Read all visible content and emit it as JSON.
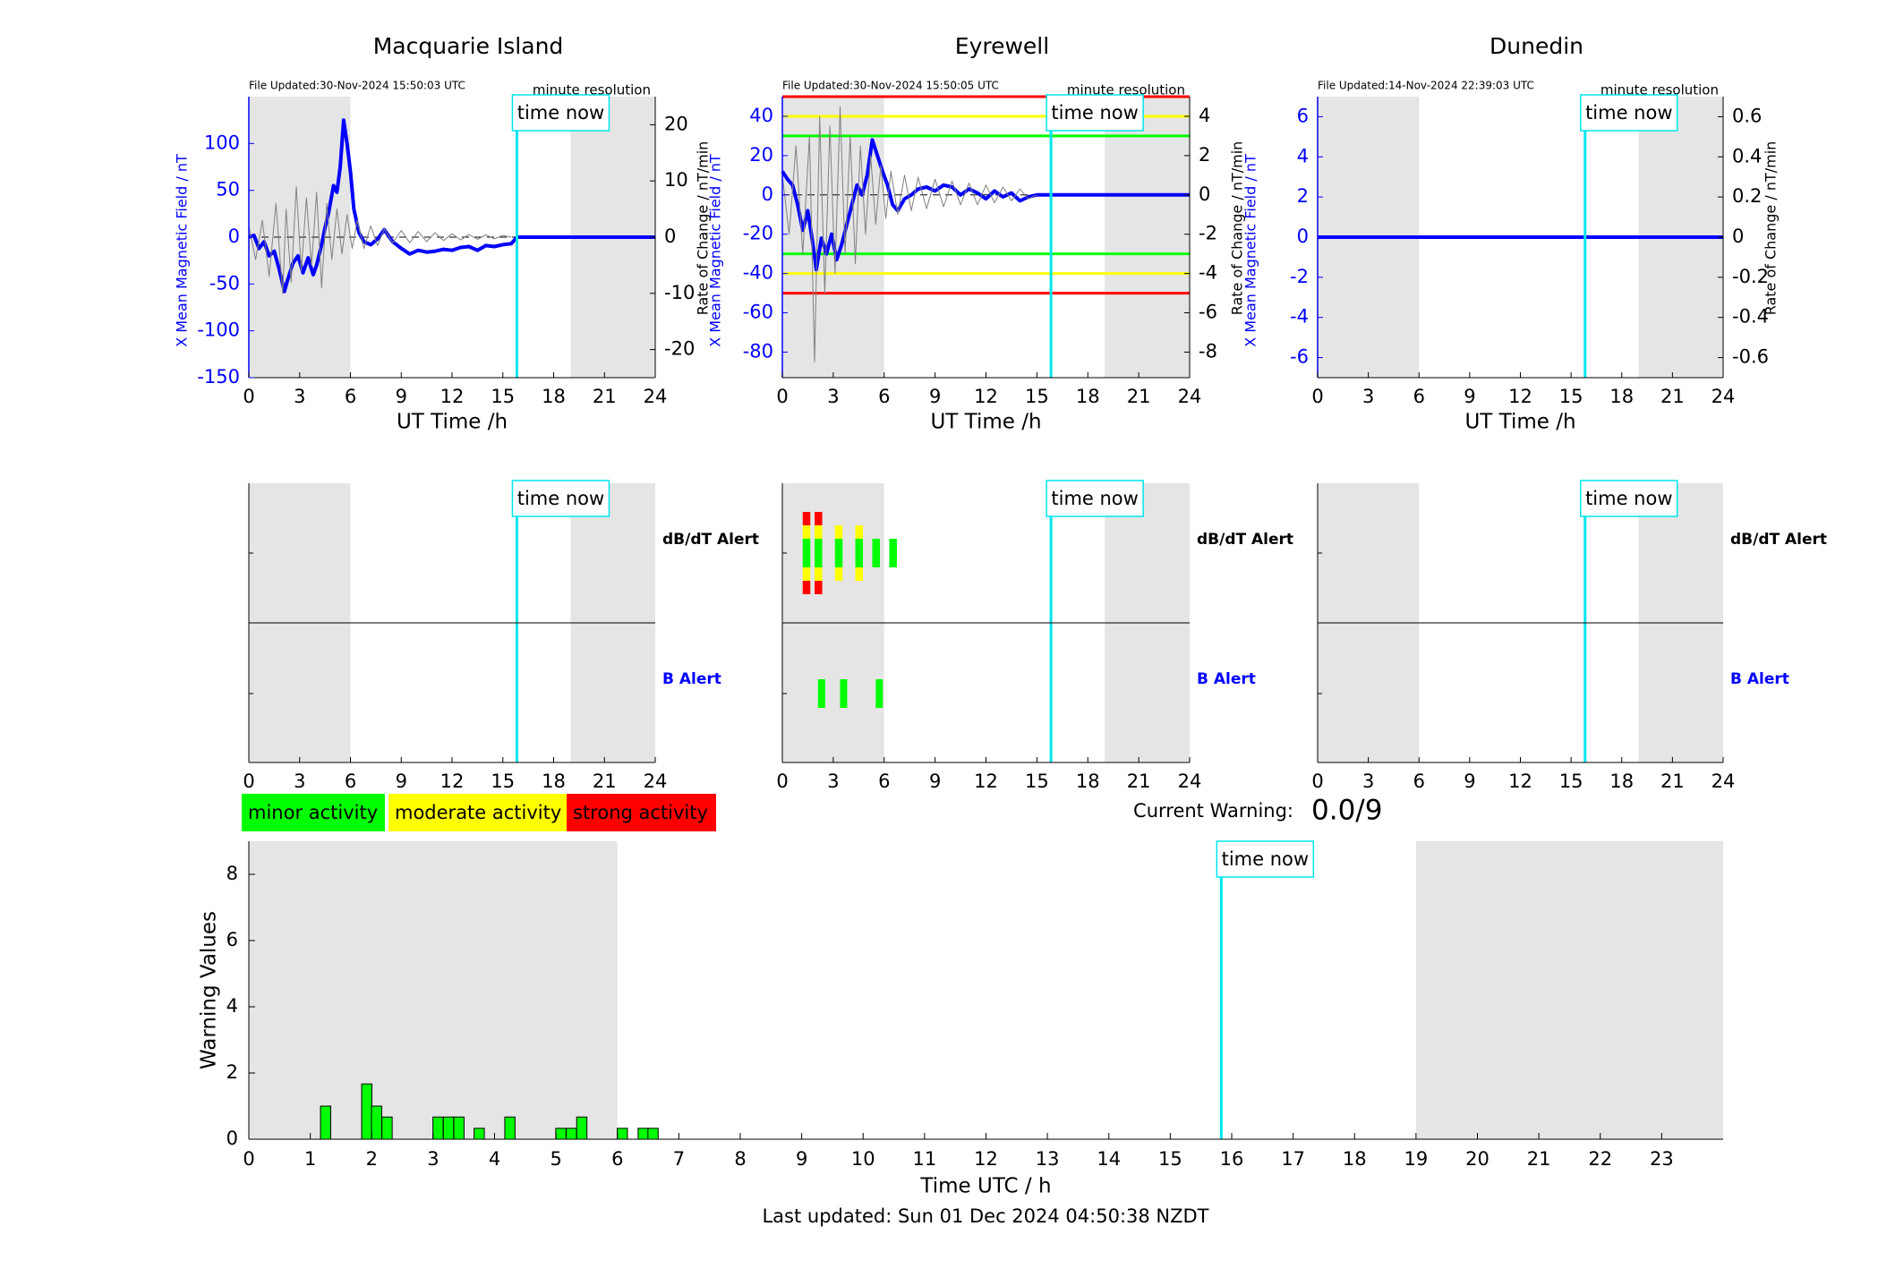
{
  "figure": {
    "time_now_label": "time now",
    "dbdt_alert_label": "dB/dT Alert",
    "b_alert_label": "B Alert",
    "minute_resolution_label": "minute resolution",
    "colors": {
      "field": "#0000ff",
      "rate": "#808080",
      "time_now": "#00e5ee",
      "night_shade": "#e5e5e5",
      "minor": "#00ff00",
      "moderate": "#ffff00",
      "strong": "#ff0000"
    },
    "legend": [
      {
        "label": "minor activity",
        "color": "#00ff00"
      },
      {
        "label": "moderate activity",
        "color": "#ffff00"
      },
      {
        "label": "strong activity",
        "color": "#ff0000"
      }
    ],
    "current_warning_label": "Current Warning:",
    "current_warning_value": "0.0/9",
    "last_updated": "Last updated: Sun 01 Dec 2024 04:50:38 NZDT"
  },
  "chart_data": [
    {
      "type": "line",
      "title": "Macquarie Island",
      "file_updated": "File Updated:30-Nov-2024 15:50:03 UTC",
      "xlabel": "UT Time /h",
      "ylabel": "X Mean Magnetic Field / nT",
      "y2label": "Rate of Change / nT/min",
      "xlim": [
        0,
        24
      ],
      "xticks": [
        0,
        3,
        6,
        9,
        12,
        15,
        18,
        21,
        24
      ],
      "ylim": [
        -150,
        150
      ],
      "yticks": [
        -150,
        -100,
        -50,
        0,
        50,
        100
      ],
      "y2lim": [
        -25,
        25
      ],
      "y2ticks": [
        -20,
        -10,
        0,
        10,
        20
      ],
      "night_shading_h": [
        [
          0,
          6
        ],
        [
          19,
          24
        ]
      ],
      "time_now_h": 15.83,
      "thresholds": [],
      "series": [
        {
          "name": "X Mean Magnetic Field",
          "axis": "left",
          "x": [
            0,
            0.3,
            0.6,
            0.9,
            1.2,
            1.5,
            1.8,
            2.1,
            2.3,
            2.6,
            2.9,
            3.2,
            3.5,
            3.8,
            4.0,
            4.3,
            4.5,
            4.7,
            5.0,
            5.2,
            5.4,
            5.6,
            5.8,
            6.0,
            6.2,
            6.5,
            6.8,
            7.2,
            7.6,
            8.0,
            8.5,
            9.0,
            9.5,
            10.0,
            10.5,
            11.0,
            11.5,
            12.0,
            12.5,
            13.0,
            13.5,
            14.0,
            14.5,
            15.0,
            15.5,
            15.83,
            24
          ],
          "y": [
            0,
            2,
            -12,
            -5,
            -20,
            -15,
            -35,
            -58,
            -45,
            -28,
            -20,
            -38,
            -22,
            -40,
            -30,
            -8,
            10,
            25,
            55,
            48,
            75,
            125,
            100,
            70,
            30,
            5,
            -5,
            -8,
            -2,
            8,
            -5,
            -12,
            -18,
            -14,
            -16,
            -15,
            -13,
            -14,
            -11,
            -10,
            -14,
            -9,
            -10,
            -8,
            -7,
            0,
            0
          ]
        },
        {
          "name": "Rate of Change",
          "axis": "right",
          "x": [
            0,
            0.4,
            0.8,
            1.2,
            1.6,
            2.0,
            2.2,
            2.5,
            2.8,
            3.1,
            3.4,
            3.7,
            4.0,
            4.3,
            4.6,
            4.9,
            5.2,
            5.5,
            5.8,
            6.1,
            6.4,
            6.8,
            7.2,
            7.6,
            8.0,
            8.5,
            9.0,
            9.5,
            10.0,
            10.5,
            11.0,
            11.5,
            12.0,
            12.5,
            13.0,
            13.5,
            14.0,
            14.5,
            15.0,
            15.5
          ],
          "y": [
            2,
            -4,
            3,
            -7,
            6,
            -10,
            5,
            -8,
            9,
            -6,
            7,
            -5,
            8,
            -9,
            6,
            -4,
            5,
            -3,
            4,
            -2,
            3,
            -2,
            2,
            -1.5,
            1.5,
            -1,
            1.2,
            -1,
            1,
            -0.8,
            0.8,
            -0.6,
            0.6,
            -0.5,
            0.5,
            -0.4,
            0.4,
            -0.3,
            0.3,
            0
          ]
        }
      ]
    },
    {
      "type": "line",
      "title": "Eyrewell",
      "file_updated": "File Updated:30-Nov-2024 15:50:05 UTC",
      "xlabel": "UT Time /h",
      "ylabel": "X Mean Magnetic Field / nT",
      "y2label": "Rate of Change / nT/min",
      "xlim": [
        0,
        24
      ],
      "xticks": [
        0,
        3,
        6,
        9,
        12,
        15,
        18,
        21,
        24
      ],
      "ylim": [
        -93,
        50
      ],
      "yticks": [
        -80,
        -60,
        -40,
        -20,
        0,
        20,
        40
      ],
      "y2lim": [
        -9.3,
        5
      ],
      "y2ticks": [
        -8,
        -6,
        -4,
        -2,
        0,
        2,
        4
      ],
      "night_shading_h": [
        [
          0,
          6
        ],
        [
          19,
          24
        ]
      ],
      "time_now_h": 15.83,
      "thresholds": [
        {
          "value": 50,
          "color": "#ff0000"
        },
        {
          "value": 40,
          "color": "#ffff00"
        },
        {
          "value": 30,
          "color": "#00ff00"
        },
        {
          "value": -30,
          "color": "#00ff00"
        },
        {
          "value": -40,
          "color": "#ffff00"
        },
        {
          "value": -50,
          "color": "#ff0000"
        }
      ],
      "series": [
        {
          "name": "X Mean Magnetic Field",
          "axis": "left",
          "x": [
            0,
            0.3,
            0.6,
            0.9,
            1.2,
            1.5,
            1.8,
            2.0,
            2.3,
            2.6,
            2.9,
            3.2,
            3.5,
            3.8,
            4.1,
            4.4,
            4.7,
            5.0,
            5.3,
            5.6,
            5.9,
            6.2,
            6.5,
            6.8,
            7.2,
            7.6,
            8.0,
            8.5,
            9.0,
            9.5,
            10.0,
            10.5,
            11.0,
            11.5,
            12.0,
            12.5,
            13.0,
            13.5,
            14.0,
            14.5,
            15.0,
            15.83,
            24
          ],
          "y": [
            12,
            8,
            5,
            -5,
            -18,
            -8,
            -25,
            -38,
            -22,
            -30,
            -20,
            -33,
            -25,
            -15,
            -5,
            5,
            0,
            10,
            28,
            20,
            12,
            5,
            -5,
            -8,
            -2,
            0,
            3,
            4,
            2,
            5,
            4,
            0,
            3,
            1,
            -2,
            2,
            -1,
            1,
            -3,
            -1,
            0,
            0,
            0
          ]
        },
        {
          "name": "Rate of Change",
          "axis": "right",
          "x": [
            0,
            0.4,
            0.8,
            1.2,
            1.6,
            1.9,
            2.2,
            2.5,
            2.8,
            3.1,
            3.4,
            3.7,
            4.0,
            4.3,
            4.6,
            4.9,
            5.2,
            5.5,
            5.8,
            6.1,
            6.4,
            6.8,
            7.2,
            7.6,
            8.0,
            8.5,
            9.0,
            9.5,
            10.0,
            10.5,
            11.0,
            11.5,
            12.0,
            12.5,
            13.0,
            13.5,
            14.0,
            14.5,
            15.0
          ],
          "y": [
            1,
            -2,
            2.5,
            -3,
            3,
            -8.5,
            4,
            -5,
            3.5,
            -4,
            4.5,
            -3,
            3,
            -3.5,
            2.5,
            -2,
            2,
            -1.5,
            1.5,
            -1.2,
            1.2,
            -1,
            1,
            -0.8,
            0.9,
            -0.7,
            0.8,
            -0.6,
            0.7,
            -0.5,
            0.6,
            -0.5,
            0.5,
            -0.4,
            0.4,
            -0.3,
            0.3,
            -0.2,
            0
          ]
        }
      ]
    },
    {
      "type": "line",
      "title": "Dunedin",
      "file_updated": "File Updated:14-Nov-2024 22:39:03 UTC",
      "xlabel": "UT Time /h",
      "ylabel": "X Mean Magnetic Field / nT",
      "y2label": "Rate of Change / nT/min",
      "xlim": [
        0,
        24
      ],
      "xticks": [
        0,
        3,
        6,
        9,
        12,
        15,
        18,
        21,
        24
      ],
      "ylim": [
        -7,
        7
      ],
      "yticks": [
        -6,
        -4,
        -2,
        0,
        2,
        4,
        6
      ],
      "y2lim": [
        -0.7,
        0.7
      ],
      "y2ticks": [
        -0.6,
        -0.4,
        -0.2,
        0,
        0.2,
        0.4,
        0.6
      ],
      "night_shading_h": [
        [
          0,
          6
        ],
        [
          19,
          24
        ]
      ],
      "time_now_h": 15.83,
      "thresholds": [],
      "series": [
        {
          "name": "X Mean Magnetic Field",
          "axis": "left",
          "x": [
            0,
            24
          ],
          "y": [
            0,
            0
          ]
        }
      ]
    },
    {
      "type": "alert",
      "station": "Macquarie Island",
      "xlim": [
        0,
        24
      ],
      "xticks": [
        0,
        3,
        6,
        9,
        12,
        15,
        18,
        21,
        24
      ],
      "night_shading_h": [
        [
          0,
          6
        ],
        [
          19,
          24
        ]
      ],
      "time_now_h": 15.83,
      "dbdt_alerts": [],
      "b_alerts": []
    },
    {
      "type": "alert",
      "station": "Eyrewell",
      "xlim": [
        0,
        24
      ],
      "xticks": [
        0,
        3,
        6,
        9,
        12,
        15,
        18,
        21,
        24
      ],
      "night_shading_h": [
        [
          0,
          6
        ],
        [
          19,
          24
        ]
      ],
      "time_now_h": 15.83,
      "dbdt_alerts": [
        {
          "t": 1.2,
          "level": 3
        },
        {
          "t": 1.9,
          "level": 3
        },
        {
          "t": 3.1,
          "level": 2
        },
        {
          "t": 4.3,
          "level": 2
        },
        {
          "t": 5.3,
          "level": 1
        },
        {
          "t": 6.3,
          "level": 1
        }
      ],
      "b_alerts": [
        {
          "t": 2.1,
          "level": 1
        },
        {
          "t": 3.4,
          "level": 1
        },
        {
          "t": 5.5,
          "level": 1
        }
      ]
    },
    {
      "type": "alert",
      "station": "Dunedin",
      "xlim": [
        0,
        24
      ],
      "xticks": [
        0,
        3,
        6,
        9,
        12,
        15,
        18,
        21,
        24
      ],
      "night_shading_h": [
        [
          0,
          6
        ],
        [
          19,
          24
        ]
      ],
      "time_now_h": 15.83,
      "dbdt_alerts": [],
      "b_alerts": []
    },
    {
      "type": "bar",
      "xlabel": "Time UTC / h",
      "ylabel": "Warning Values",
      "xlim": [
        0,
        24
      ],
      "xticks": [
        0,
        1,
        2,
        3,
        4,
        5,
        6,
        7,
        8,
        9,
        10,
        11,
        12,
        13,
        14,
        15,
        16,
        17,
        18,
        19,
        20,
        21,
        22,
        23
      ],
      "ylim": [
        0,
        9
      ],
      "yticks": [
        0,
        2,
        4,
        6,
        8
      ],
      "night_shading_h": [
        [
          0,
          6
        ],
        [
          19,
          24
        ]
      ],
      "time_now_h": 15.83,
      "x": [
        1.25,
        1.92,
        2.08,
        2.25,
        3.08,
        3.25,
        3.42,
        3.75,
        4.25,
        5.08,
        5.25,
        5.42,
        6.08,
        6.42,
        6.58
      ],
      "values": [
        1,
        1.67,
        1,
        0.67,
        0.67,
        0.67,
        0.67,
        0.33,
        0.67,
        0.33,
        0.33,
        0.67,
        0.33,
        0.33,
        0.33
      ]
    }
  ]
}
